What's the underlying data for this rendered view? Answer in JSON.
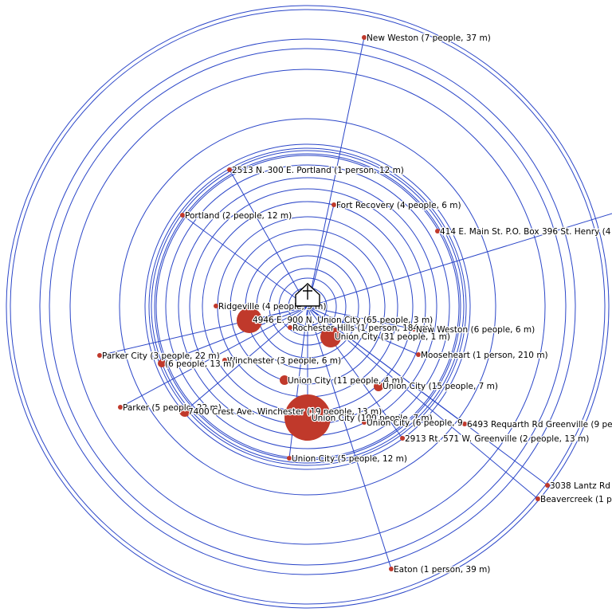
{
  "center_icon": "church-icon",
  "colors": {
    "rings": "#2b46c8",
    "points": "#c0392b",
    "background": "#ffffff"
  },
  "places": [
    {
      "label": "New Weston (7 people, 37 m)"
    },
    {
      "label": "2513 N. 300 E. Portland (1 person, 12 m)"
    },
    {
      "label": "Fort Recovery (4 people, 6 m)"
    },
    {
      "label": "Portland (2 people, 12 m)"
    },
    {
      "label": "414 E. Main St. P.O. Box 396 St. Henry (4"
    },
    {
      "label": "Ridgeville (4 people, 5 m)"
    },
    {
      "label": "4946 E. 900 N. Union City (65 people, 3 m)"
    },
    {
      "label": "Rochester Hills (1 person, 184 m)"
    },
    {
      "label": "New Weston (6 people, 6 m)"
    },
    {
      "label": "Union City (31 people, 1 m)"
    },
    {
      "label": "Parker City (3 people, 22 m)"
    },
    {
      "label": "Winchester (3 people, 6 m)"
    },
    {
      "label": "(6 people, 13 m)"
    },
    {
      "label": "Mooseheart (1 person, 210 m)"
    },
    {
      "label": "Union City (11 people, 4 m)"
    },
    {
      "label": "Union City (15 people, 7 m)"
    },
    {
      "label": "Parker (5 people, 22 m)"
    },
    {
      "label": "7400 Crest Ave. Winchester (19 people, 13 m)"
    },
    {
      "label": "Union City (100 people, 7 m)"
    },
    {
      "label": "Union City (6 people, 9"
    },
    {
      "label": "6493 Requarth Rd Greenville (9 pe"
    },
    {
      "label": "2913 Rt. 571 W. Greenville (2 people, 13 m)"
    },
    {
      "label": "Union City (5 people, 12 m)"
    },
    {
      "label": "3038 Lantz Rd"
    },
    {
      "label": "Beavercreek (1 p"
    },
    {
      "label": "Eaton (1 person, 39 m)"
    }
  ]
}
